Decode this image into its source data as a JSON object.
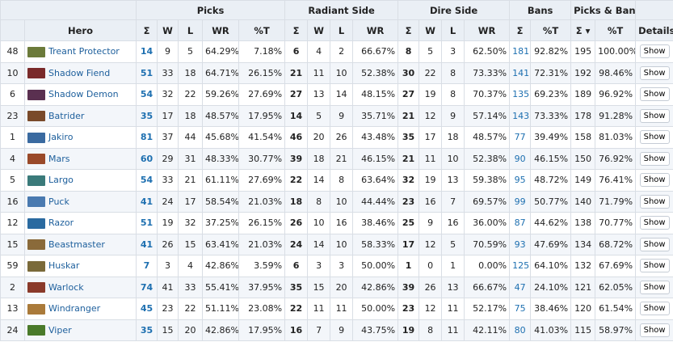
{
  "header": {
    "groups": [
      "Picks",
      "Radiant Side",
      "Dire Side",
      "Bans",
      "Picks & Bans"
    ],
    "columns": [
      "Hero",
      "Σ",
      "W",
      "L",
      "WR",
      "%T",
      "Σ",
      "W",
      "L",
      "WR",
      "Σ",
      "W",
      "L",
      "WR",
      "Σ",
      "%T",
      "Σ ▾",
      "%T",
      "Details"
    ]
  },
  "table": {
    "rows": [
      [
        48,
        "Treant Protector",
        14,
        9,
        5,
        "64.29%",
        "7.18%",
        6,
        4,
        2,
        "66.67%",
        8,
        5,
        3,
        "62.50%",
        181,
        "92.82%",
        195,
        "100.00%",
        "Show"
      ],
      [
        10,
        "Shadow Fiend",
        51,
        33,
        18,
        "64.71%",
        "26.15%",
        21,
        11,
        10,
        "52.38%",
        30,
        22,
        8,
        "73.33%",
        141,
        "72.31%",
        192,
        "98.46%",
        "Show"
      ],
      [
        6,
        "Shadow Demon",
        54,
        32,
        22,
        "59.26%",
        "27.69%",
        27,
        13,
        14,
        "48.15%",
        27,
        19,
        8,
        "70.37%",
        135,
        "69.23%",
        189,
        "96.92%",
        "Show"
      ],
      [
        23,
        "Batrider",
        35,
        17,
        18,
        "48.57%",
        "17.95%",
        14,
        5,
        9,
        "35.71%",
        21,
        12,
        9,
        "57.14%",
        143,
        "73.33%",
        178,
        "91.28%",
        "Show"
      ],
      [
        1,
        "Jakiro",
        81,
        37,
        44,
        "45.68%",
        "41.54%",
        46,
        20,
        26,
        "43.48%",
        35,
        17,
        18,
        "48.57%",
        77,
        "39.49%",
        158,
        "81.03%",
        "Show"
      ],
      [
        4,
        "Mars",
        60,
        29,
        31,
        "48.33%",
        "30.77%",
        39,
        18,
        21,
        "46.15%",
        21,
        11,
        10,
        "52.38%",
        90,
        "46.15%",
        150,
        "76.92%",
        "Show"
      ],
      [
        5,
        "Largo",
        54,
        33,
        21,
        "61.11%",
        "27.69%",
        22,
        14,
        8,
        "63.64%",
        32,
        19,
        13,
        "59.38%",
        95,
        "48.72%",
        149,
        "76.41%",
        "Show"
      ],
      [
        16,
        "Puck",
        41,
        24,
        17,
        "58.54%",
        "21.03%",
        18,
        8,
        10,
        "44.44%",
        23,
        16,
        7,
        "69.57%",
        99,
        "50.77%",
        140,
        "71.79%",
        "Show"
      ],
      [
        12,
        "Razor",
        51,
        19,
        32,
        "37.25%",
        "26.15%",
        26,
        10,
        16,
        "38.46%",
        25,
        9,
        16,
        "36.00%",
        87,
        "44.62%",
        138,
        "70.77%",
        "Show"
      ],
      [
        15,
        "Beastmaster",
        41,
        26,
        15,
        "63.41%",
        "21.03%",
        24,
        14,
        10,
        "58.33%",
        17,
        12,
        5,
        "70.59%",
        93,
        "47.69%",
        134,
        "68.72%",
        "Show"
      ],
      [
        59,
        "Huskar",
        7,
        3,
        4,
        "42.86%",
        "3.59%",
        6,
        3,
        3,
        "50.00%",
        1,
        0,
        1,
        "0.00%",
        125,
        "64.10%",
        132,
        "67.69%",
        "Show"
      ],
      [
        2,
        "Warlock",
        74,
        41,
        33,
        "55.41%",
        "37.95%",
        35,
        15,
        20,
        "42.86%",
        39,
        26,
        13,
        "66.67%",
        47,
        "24.10%",
        121,
        "62.05%",
        "Show"
      ],
      [
        13,
        "Windranger",
        45,
        23,
        22,
        "51.11%",
        "23.08%",
        22,
        11,
        11,
        "50.00%",
        23,
        12,
        11,
        "52.17%",
        75,
        "38.46%",
        120,
        "61.54%",
        "Show"
      ],
      [
        24,
        "Viper",
        35,
        15,
        20,
        "42.86%",
        "17.95%",
        16,
        7,
        9,
        "43.75%",
        19,
        8,
        11,
        "42.11%",
        80,
        "41.03%",
        115,
        "58.97%",
        "Show"
      ]
    ]
  }
}
